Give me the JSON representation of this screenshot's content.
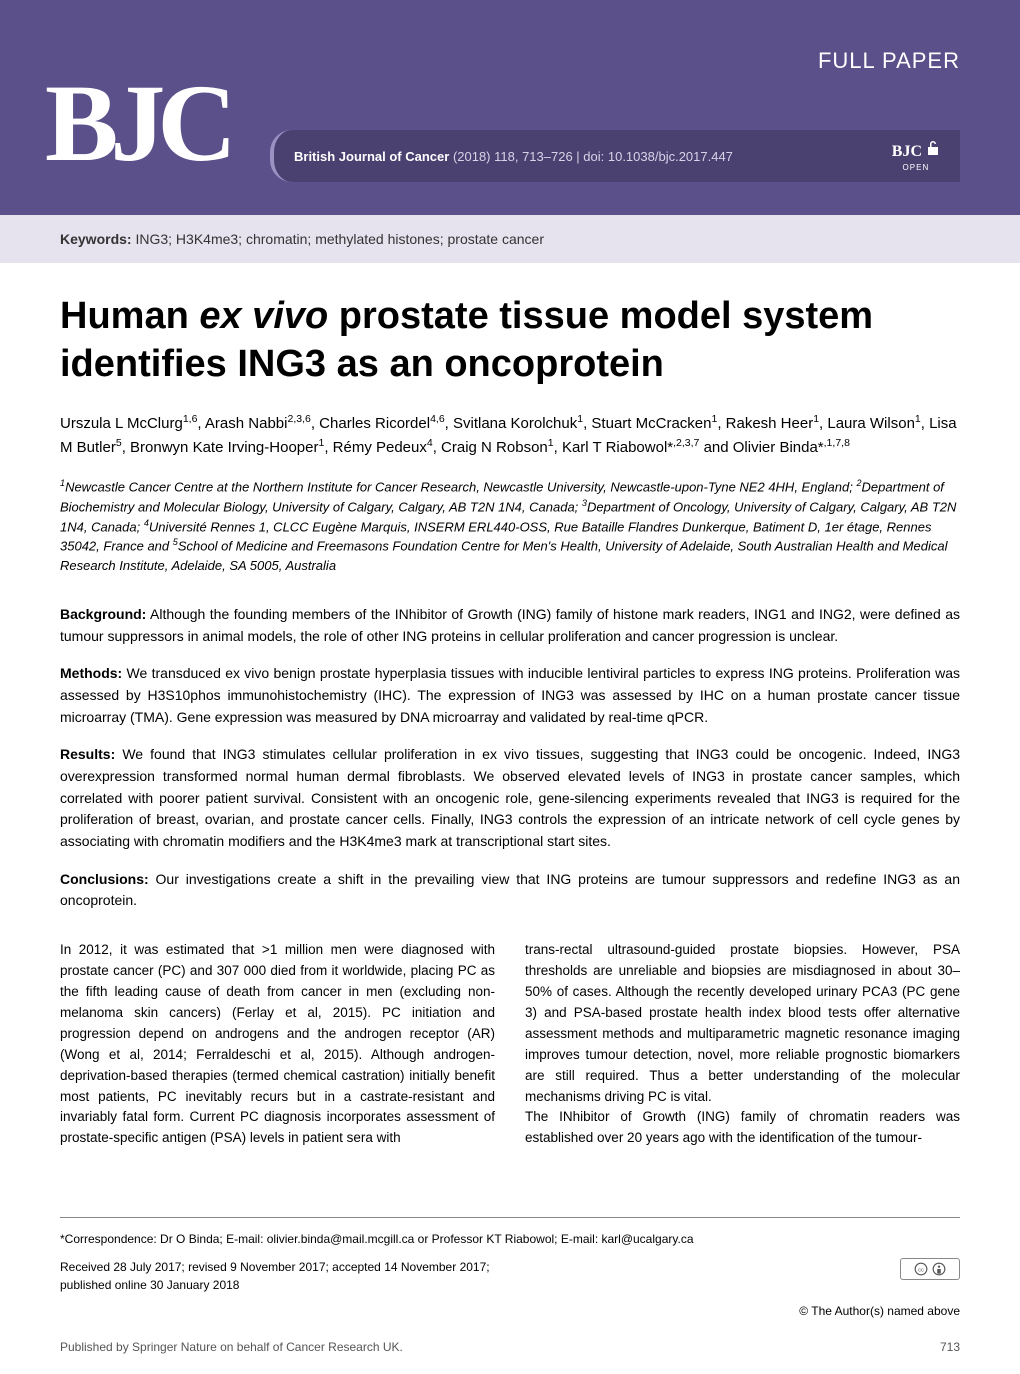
{
  "header": {
    "full_paper_label": "FULL PAPER",
    "logo_text": "BJC",
    "journal_name": "British Journal of Cancer",
    "citation": "(2018) 118, 713–726 | doi: 10.1038/bjc.2017.447",
    "open_logo": "BJC",
    "open_text": "OPEN",
    "header_bg": "#5b5089",
    "bar_bg": "#4a4170"
  },
  "keywords": {
    "label": "Keywords:",
    "text": "ING3; H3K4me3; chromatin; methylated histones; prostate cancer"
  },
  "title_html": "Human <em>ex vivo</em> prostate tissue model system identifies ING3 as an oncoprotein",
  "authors_html": "Urszula L McClurg<sup>1,6</sup>, Arash Nabbi<sup>2,3,6</sup>, Charles Ricordel<sup>4,6</sup>, Svitlana Korolchuk<sup>1</sup>, Stuart McCracken<sup>1</sup>, Rakesh Heer<sup>1</sup>, Laura Wilson<sup>1</sup>, Lisa M Butler<sup>5</sup>, Bronwyn Kate Irving-Hooper<sup>1</sup>, Rémy Pedeux<sup>4</sup>, Craig N Robson<sup>1</sup>, Karl T Riabowol*<sup>,2,3,7</sup> and Olivier Binda*<sup>,1,7,8</sup>",
  "affiliations_html": "<sup>1</sup>Newcastle Cancer Centre at the Northern Institute for Cancer Research, Newcastle University, Newcastle-upon-Tyne NE2 4HH, England; <sup>2</sup>Department of Biochemistry and Molecular Biology, University of Calgary, Calgary, AB T2N 1N4, Canada; <sup>3</sup>Department of Oncology, University of Calgary, Calgary, AB T2N 1N4, Canada; <sup>4</sup>Université Rennes 1, CLCC Eugène Marquis, INSERM ERL440-OSS, Rue Bataille Flandres Dunkerque, Batiment D, 1er étage, Rennes 35042, France and <sup>5</sup>School of Medicine and Freemasons Foundation Centre for Men's Health, University of Adelaide, South Australian Health and Medical Research Institute, Adelaide, SA 5005, Australia",
  "abstract": {
    "background_label": "Background:",
    "background_text": "Although the founding members of the INhibitor of Growth (ING) family of histone mark readers, ING1 and ING2, were defined as tumour suppressors in animal models, the role of other ING proteins in cellular proliferation and cancer progression is unclear.",
    "methods_label": "Methods:",
    "methods_text": "We transduced ex vivo benign prostate hyperplasia tissues with inducible lentiviral particles to express ING proteins. Proliferation was assessed by H3S10phos immunohistochemistry (IHC). The expression of ING3 was assessed by IHC on a human prostate cancer tissue microarray (TMA). Gene expression was measured by DNA microarray and validated by real-time qPCR.",
    "results_label": "Results:",
    "results_text": "We found that ING3 stimulates cellular proliferation in ex vivo tissues, suggesting that ING3 could be oncogenic. Indeed, ING3 overexpression transformed normal human dermal fibroblasts. We observed elevated levels of ING3 in prostate cancer samples, which correlated with poorer patient survival. Consistent with an oncogenic role, gene-silencing experiments revealed that ING3 is required for the proliferation of breast, ovarian, and prostate cancer cells. Finally, ING3 controls the expression of an intricate network of cell cycle genes by associating with chromatin modifiers and the H3K4me3 mark at transcriptional start sites.",
    "conclusions_label": "Conclusions:",
    "conclusions_text": "Our investigations create a shift in the prevailing view that ING proteins are tumour suppressors and redefine ING3 as an oncoprotein."
  },
  "body": {
    "col1": "In 2012, it was estimated that >1 million men were diagnosed with prostate cancer (PC) and 307 000 died from it worldwide, placing PC as the fifth leading cause of death from cancer in men (excluding non-melanoma skin cancers) (Ferlay et al, 2015). PC initiation and progression depend on androgens and the androgen receptor (AR) (Wong et al, 2014; Ferraldeschi et al, 2015). Although androgen-deprivation-based therapies (termed chemical castration) initially benefit most patients, PC inevitably recurs but in a castrate-resistant and invariably fatal form. Current PC diagnosis incorporates assessment of prostate-specific antigen (PSA) levels in patient sera with",
    "col2": "trans-rectal ultrasound-guided prostate biopsies. However, PSA thresholds are unreliable and biopsies are misdiagnosed in about 30–50% of cases. Although the recently developed urinary PCA3 (PC gene 3) and PSA-based prostate health index blood tests offer alternative assessment methods and multiparametric magnetic resonance imaging improves tumour detection, novel, more reliable prognostic biomarkers are still required. Thus a better understanding of the molecular mechanisms driving PC is vital.\n   The INhibitor of Growth (ING) family of chromatin readers was established over 20 years ago with the identification of the tumour-"
  },
  "footer": {
    "correspondence": "*Correspondence: Dr O Binda; E-mail: olivier.binda@mail.mcgill.ca or Professor KT Riabowol; E-mail: karl@ucalgary.ca",
    "dates": "Received 28 July 2017; revised 9 November 2017; accepted 14 November 2017;\npublished online 30 January 2018",
    "cc_label": "cc",
    "author_rights": "© The Author(s) named above",
    "publisher": "Published by Springer Nature on behalf of Cancer Research UK.",
    "page_number": "713"
  }
}
